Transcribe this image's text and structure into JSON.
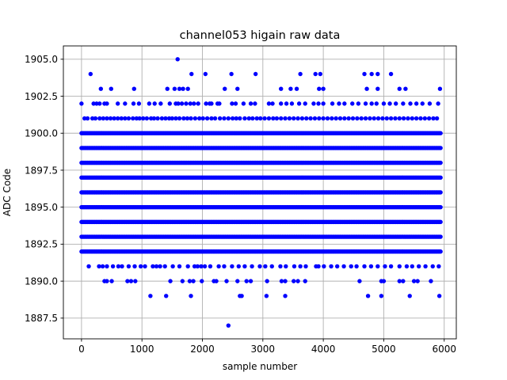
{
  "chart_data": {
    "type": "scatter",
    "title": "channel053 higain raw data",
    "xlabel": "sample number",
    "ylabel": "ADC Code",
    "xlim": [
      -300,
      6200
    ],
    "ylim": [
      1886.1,
      1905.9
    ],
    "xticks": [
      0,
      1000,
      2000,
      3000,
      4000,
      5000,
      6000
    ],
    "yticks": [
      1887.5,
      1890.0,
      1892.5,
      1895.0,
      1897.5,
      1900.0,
      1902.5,
      1905.0
    ],
    "xtick_labels": [
      "0",
      "1000",
      "2000",
      "3000",
      "4000",
      "5000",
      "6000"
    ],
    "ytick_labels": [
      "1887.5",
      "1890.0",
      "1892.5",
      "1895.0",
      "1897.5",
      "1900.0",
      "1902.5",
      "1905.0"
    ],
    "grid": true,
    "marker_color": "#0000ff",
    "x_range": [
      0,
      5940
    ],
    "dense_levels": [
      1892,
      1893,
      1894,
      1895,
      1896,
      1897,
      1898,
      1899,
      1900
    ],
    "sparse_levels": [
      {
        "y": 1901,
        "x": [
          50,
          100,
          180,
          230,
          300,
          360,
          420,
          480,
          540,
          600,
          660,
          720,
          780,
          850,
          910,
          960,
          1020,
          1080,
          1150,
          1200,
          1260,
          1330,
          1390,
          1450,
          1500,
          1560,
          1620,
          1690,
          1750,
          1810,
          1880,
          1950,
          2010,
          2080,
          2150,
          2210,
          2290,
          2360,
          2430,
          2500,
          2560,
          2620,
          2700,
          2770,
          2830,
          2900,
          2960,
          3030,
          3100,
          3170,
          3230,
          3300,
          3370,
          3440,
          3510,
          3580,
          3650,
          3720,
          3790,
          3860,
          3930,
          4000,
          4070,
          4140,
          4210,
          4280,
          4350,
          4420,
          4490,
          4560,
          4630,
          4700,
          4770,
          4840,
          4910,
          4980,
          5050,
          5120,
          5190,
          5260,
          5330,
          5400,
          5470,
          5540,
          5610,
          5680,
          5750,
          5820,
          5880
        ]
      },
      {
        "y": 1902,
        "x": [
          0,
          200,
          250,
          300,
          380,
          420,
          600,
          720,
          860,
          950,
          1120,
          1210,
          1310,
          1460,
          1560,
          1600,
          1660,
          1730,
          1800,
          1860,
          1930,
          2060,
          2120,
          2150,
          2250,
          2280,
          2490,
          2550,
          2680,
          2800,
          2870,
          3100,
          3160,
          3300,
          3390,
          3480,
          3600,
          3700,
          3840,
          3920,
          4000,
          4150,
          4260,
          4350,
          4480,
          4580,
          4700,
          4800,
          4880,
          5000,
          5100,
          5200,
          5320,
          5440,
          5540,
          5640,
          5760,
          5900
        ]
      },
      {
        "y": 1903,
        "x": [
          320,
          490,
          870,
          1420,
          1540,
          1620,
          1680,
          1760,
          2370,
          2580,
          3300,
          3460,
          3560,
          3930,
          4000,
          4720,
          4900,
          5260,
          5360,
          5930
        ]
      },
      {
        "y": 1904,
        "x": [
          150,
          1820,
          2050,
          2480,
          2880,
          3620,
          3870,
          3950,
          4680,
          4800,
          4900,
          5120
        ]
      },
      {
        "y": 1905,
        "x": [
          1590
        ]
      },
      {
        "y": 1891,
        "x": [
          120,
          290,
          350,
          420,
          520,
          610,
          670,
          780,
          880,
          980,
          1050,
          1180,
          1240,
          1300,
          1380,
          1510,
          1620,
          1760,
          1870,
          1920,
          1980,
          2040,
          2130,
          2270,
          2360,
          2490,
          2600,
          2700,
          2820,
          2950,
          3040,
          3150,
          3290,
          3380,
          3520,
          3620,
          3710,
          3880,
          3920,
          4010,
          4130,
          4230,
          4340,
          4460,
          4550,
          4680,
          4790,
          4900,
          5020,
          5120,
          5260,
          5380,
          5470,
          5580,
          5690,
          5810,
          5910
        ]
      },
      {
        "y": 1890,
        "x": [
          380,
          420,
          500,
          760,
          820,
          890,
          1470,
          1670,
          1790,
          1850,
          1990,
          2190,
          2230,
          2400,
          2580,
          2730,
          2800,
          3070,
          3310,
          3370,
          3510,
          3580,
          3700,
          4600,
          4960,
          5000,
          5260,
          5320,
          5500,
          5560,
          5780
        ]
      },
      {
        "y": 1889,
        "x": [
          1140,
          1400,
          1810,
          2620,
          2650,
          3060,
          3370,
          4740,
          4960,
          5430,
          5920
        ]
      },
      {
        "y": 1887,
        "x": [
          2430
        ]
      }
    ]
  }
}
